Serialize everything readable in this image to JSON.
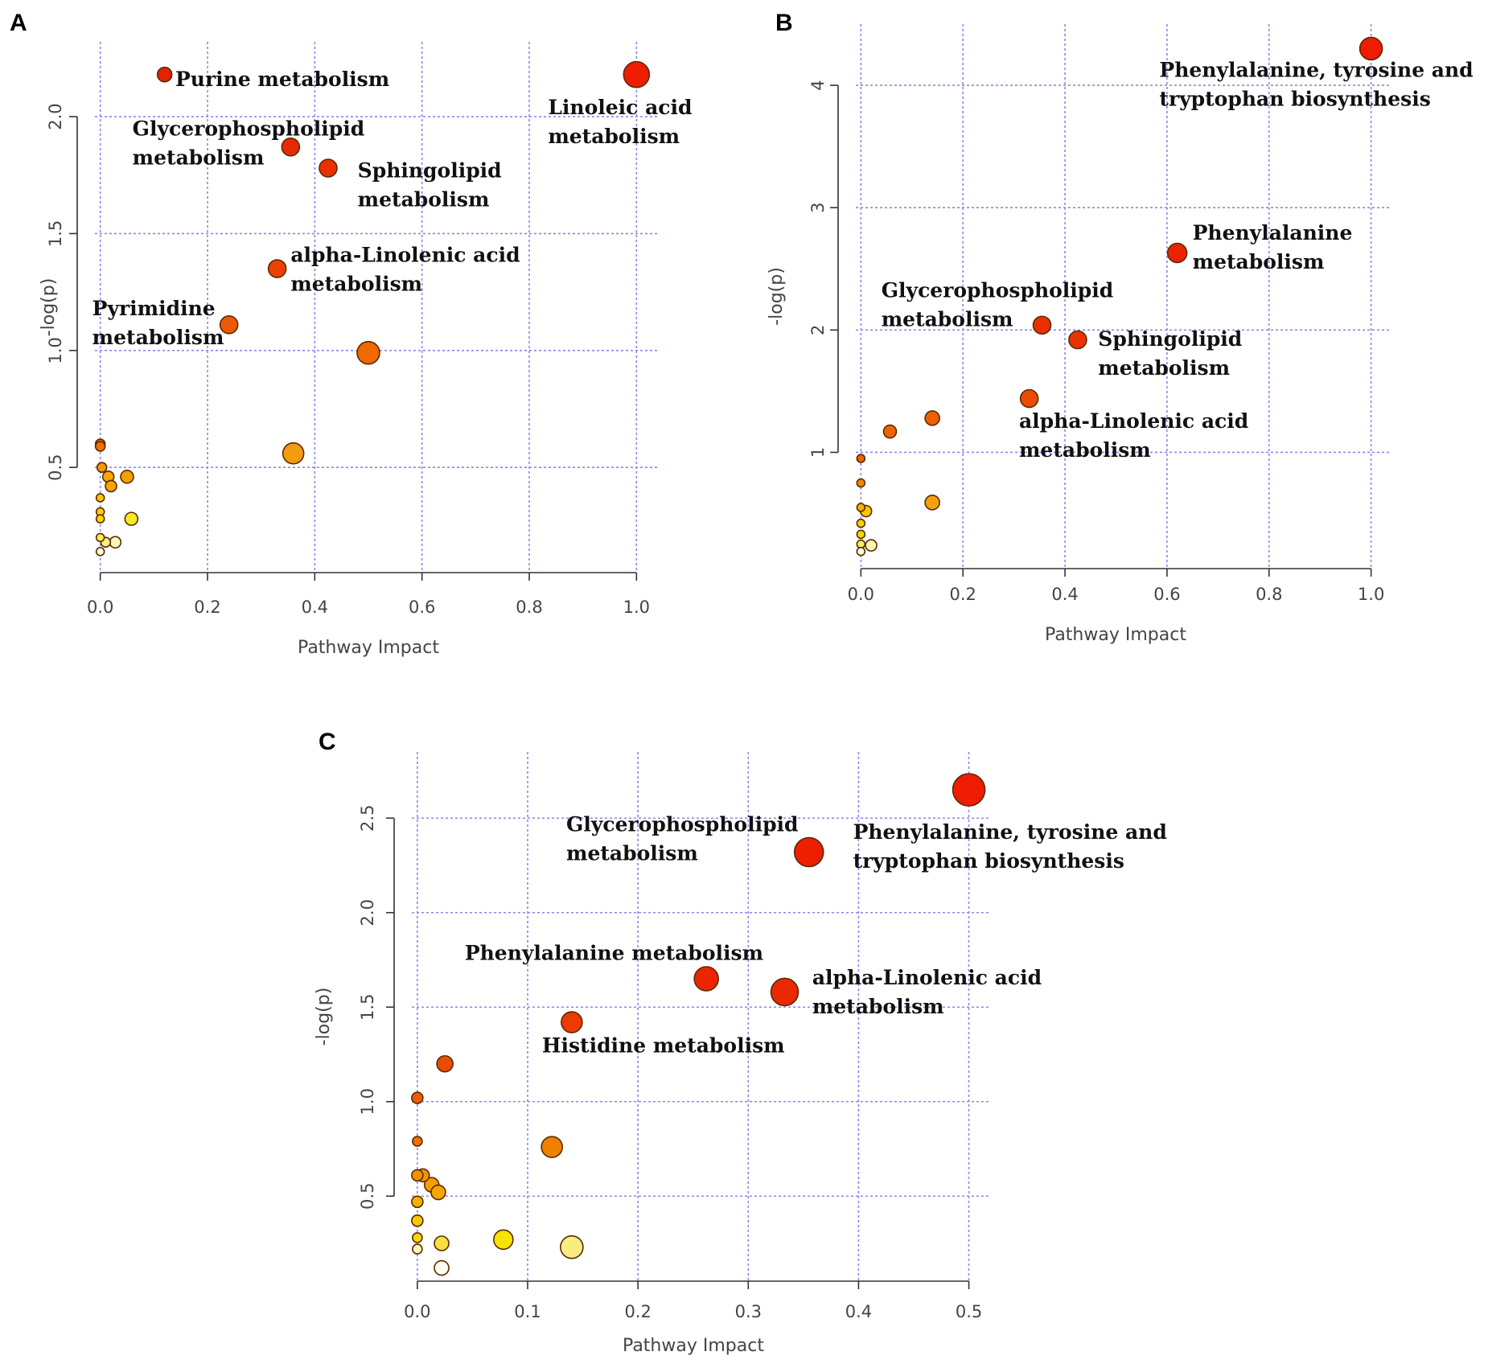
{
  "chart_data": [
    {
      "panel": "A",
      "type": "scatter",
      "xlabel": "Pathway Impact",
      "ylabel": "-log(p)",
      "xlim": [
        -0.01,
        1.04
      ],
      "ylim": [
        0.05,
        2.32
      ],
      "xticks": [
        0.0,
        0.2,
        0.4,
        0.6,
        0.8,
        1.0
      ],
      "xtick_labels": [
        "0.0",
        "0.2",
        "0.4",
        "0.6",
        "0.8",
        "1.0"
      ],
      "yticks": [
        0.5,
        1.0,
        1.5,
        2.0
      ],
      "ytick_labels": [
        "0.5",
        "1.0",
        "1.5",
        "2.0"
      ],
      "points": [
        {
          "x": 1.0,
          "y": 2.18,
          "r": 16,
          "color": "#ee1c00"
        },
        {
          "x": 0.12,
          "y": 2.18,
          "r": 9,
          "color": "#e42100"
        },
        {
          "x": 0.355,
          "y": 1.87,
          "r": 11,
          "color": "#e82a00"
        },
        {
          "x": 0.425,
          "y": 1.78,
          "r": 11,
          "color": "#ea3000"
        },
        {
          "x": 0.33,
          "y": 1.35,
          "r": 11,
          "color": "#ec4200"
        },
        {
          "x": 0.24,
          "y": 1.11,
          "r": 11,
          "color": "#ee5a00"
        },
        {
          "x": 0.5,
          "y": 0.99,
          "r": 14,
          "color": "#ef6800"
        },
        {
          "x": 0.36,
          "y": 0.56,
          "r": 13,
          "color": "#f49c10"
        },
        {
          "x": 0.0,
          "y": 0.6,
          "r": 6,
          "color": "#ec6000"
        },
        {
          "x": 0.0,
          "y": 0.59,
          "r": 6,
          "color": "#ee7000"
        },
        {
          "x": 0.003,
          "y": 0.5,
          "r": 6,
          "color": "#f39a00"
        },
        {
          "x": 0.015,
          "y": 0.46,
          "r": 7,
          "color": "#f5a800"
        },
        {
          "x": 0.02,
          "y": 0.42,
          "r": 7,
          "color": "#f6a500"
        },
        {
          "x": 0.05,
          "y": 0.46,
          "r": 8,
          "color": "#f5a000"
        },
        {
          "x": 0.0,
          "y": 0.37,
          "r": 5,
          "color": "#f8c800"
        },
        {
          "x": 0.0,
          "y": 0.31,
          "r": 5,
          "color": "#f8d000"
        },
        {
          "x": 0.0,
          "y": 0.28,
          "r": 5,
          "color": "#f9d800"
        },
        {
          "x": 0.058,
          "y": 0.28,
          "r": 8,
          "color": "#f8e820"
        },
        {
          "x": 0.0,
          "y": 0.2,
          "r": 5,
          "color": "#faf050"
        },
        {
          "x": 0.01,
          "y": 0.18,
          "r": 6,
          "color": "#fbf080"
        },
        {
          "x": 0.028,
          "y": 0.18,
          "r": 7,
          "color": "#fdf8c0"
        },
        {
          "x": 0.0,
          "y": 0.14,
          "r": 5,
          "color": "#fefee0"
        }
      ],
      "annotations": [
        {
          "lines": [
            "Purine metabolism"
          ],
          "x": 0.14,
          "y": 2.13
        },
        {
          "lines": [
            "Linoleic acid",
            "metabolism"
          ],
          "x": 0.835,
          "y": 2.01
        },
        {
          "lines": [
            "Glycerophospholipid",
            "metabolism"
          ],
          "x": 0.06,
          "y": 1.92
        },
        {
          "lines": [
            "Sphingolipid",
            "metabolism"
          ],
          "x": 0.48,
          "y": 1.74
        },
        {
          "lines": [
            "alpha-Linolenic acid",
            "metabolism"
          ],
          "x": 0.355,
          "y": 1.38
        },
        {
          "lines": [
            "Pyrimidine",
            "metabolism"
          ],
          "x": -0.015,
          "y": 1.15
        }
      ]
    },
    {
      "panel": "B",
      "type": "scatter",
      "xlabel": "Pathway Impact",
      "ylabel": "-log(p)",
      "xlim": [
        -0.01,
        1.04
      ],
      "ylim": [
        0.05,
        4.5
      ],
      "xticks": [
        0.0,
        0.2,
        0.4,
        0.6,
        0.8,
        1.0
      ],
      "xtick_labels": [
        "0.0",
        "0.2",
        "0.4",
        "0.6",
        "0.8",
        "1.0"
      ],
      "yticks": [
        1,
        2,
        3,
        4
      ],
      "ytick_labels": [
        "1",
        "2",
        "3",
        "4"
      ],
      "points": [
        {
          "x": 1.0,
          "y": 4.3,
          "r": 14,
          "color": "#ee1c00"
        },
        {
          "x": 0.62,
          "y": 2.63,
          "r": 12,
          "color": "#ea2400"
        },
        {
          "x": 0.355,
          "y": 2.04,
          "r": 11,
          "color": "#ea3000"
        },
        {
          "x": 0.425,
          "y": 1.92,
          "r": 11,
          "color": "#ea3400"
        },
        {
          "x": 0.33,
          "y": 1.44,
          "r": 11,
          "color": "#ec4c00"
        },
        {
          "x": 0.14,
          "y": 1.28,
          "r": 9,
          "color": "#ee6000"
        },
        {
          "x": 0.057,
          "y": 1.17,
          "r": 8,
          "color": "#ee6400"
        },
        {
          "x": 0.0,
          "y": 0.95,
          "r": 5,
          "color": "#ee6000"
        },
        {
          "x": 0.0,
          "y": 0.75,
          "r": 5,
          "color": "#f08800"
        },
        {
          "x": 0.14,
          "y": 0.59,
          "r": 9,
          "color": "#f4a010"
        },
        {
          "x": 0.0,
          "y": 0.55,
          "r": 5,
          "color": "#f6b000"
        },
        {
          "x": 0.01,
          "y": 0.52,
          "r": 7,
          "color": "#f7c800"
        },
        {
          "x": 0.0,
          "y": 0.42,
          "r": 5,
          "color": "#f8d000"
        },
        {
          "x": 0.0,
          "y": 0.33,
          "r": 5,
          "color": "#f9d800"
        },
        {
          "x": 0.0,
          "y": 0.25,
          "r": 5,
          "color": "#faf060"
        },
        {
          "x": 0.02,
          "y": 0.24,
          "r": 7,
          "color": "#fcf8b0"
        },
        {
          "x": 0.0,
          "y": 0.19,
          "r": 5,
          "color": "#fefee0"
        }
      ],
      "annotations": [
        {
          "lines": [
            "Phenylalanine, tyrosine and",
            "tryptophan biosynthesis"
          ],
          "x": 0.585,
          "y": 4.07
        },
        {
          "lines": [
            "Phenylalanine",
            "metabolism"
          ],
          "x": 0.65,
          "y": 2.74
        },
        {
          "lines": [
            "Glycerophospholipid",
            "metabolism"
          ],
          "x": 0.04,
          "y": 2.27
        },
        {
          "lines": [
            "Sphingolipid",
            "metabolism"
          ],
          "x": 0.465,
          "y": 1.87
        },
        {
          "lines": [
            "alpha-Linolenic acid",
            "metabolism"
          ],
          "x": 0.31,
          "y": 1.2
        }
      ]
    },
    {
      "panel": "C",
      "type": "scatter",
      "xlabel": "Pathway Impact",
      "ylabel": "-log(p)",
      "xlim": [
        -0.005,
        0.52
      ],
      "ylim": [
        0.05,
        2.85
      ],
      "xticks": [
        0.0,
        0.1,
        0.2,
        0.3,
        0.4,
        0.5
      ],
      "xtick_labels": [
        "0.0",
        "0.1",
        "0.2",
        "0.3",
        "0.4",
        "0.5"
      ],
      "yticks": [
        0.5,
        1.0,
        1.5,
        2.0,
        2.5
      ],
      "ytick_labels": [
        "0.5",
        "1.0",
        "1.5",
        "2.0",
        "2.5"
      ],
      "points": [
        {
          "x": 0.5,
          "y": 2.65,
          "r": 20,
          "color": "#ee1c00"
        },
        {
          "x": 0.355,
          "y": 2.32,
          "r": 18,
          "color": "#ee1e00"
        },
        {
          "x": 0.262,
          "y": 1.65,
          "r": 15,
          "color": "#ec2400"
        },
        {
          "x": 0.333,
          "y": 1.58,
          "r": 17,
          "color": "#ec2800"
        },
        {
          "x": 0.14,
          "y": 1.42,
          "r": 13,
          "color": "#ec3a00"
        },
        {
          "x": 0.025,
          "y": 1.2,
          "r": 10,
          "color": "#ea4c00"
        },
        {
          "x": 0.0,
          "y": 1.02,
          "r": 7,
          "color": "#ec5c00"
        },
        {
          "x": 0.0,
          "y": 0.79,
          "r": 6,
          "color": "#ee7000"
        },
        {
          "x": 0.122,
          "y": 0.76,
          "r": 13,
          "color": "#f08000"
        },
        {
          "x": 0.0,
          "y": 0.61,
          "r": 7,
          "color": "#f29200"
        },
        {
          "x": 0.005,
          "y": 0.61,
          "r": 8,
          "color": "#f29600"
        },
        {
          "x": 0.013,
          "y": 0.56,
          "r": 9,
          "color": "#f49f00"
        },
        {
          "x": 0.019,
          "y": 0.52,
          "r": 9,
          "color": "#f5a500"
        },
        {
          "x": 0.0,
          "y": 0.47,
          "r": 7,
          "color": "#f6b000"
        },
        {
          "x": 0.0,
          "y": 0.37,
          "r": 7,
          "color": "#f8c800"
        },
        {
          "x": 0.0,
          "y": 0.28,
          "r": 6,
          "color": "#f9d800"
        },
        {
          "x": 0.022,
          "y": 0.25,
          "r": 9,
          "color": "#f8e040"
        },
        {
          "x": 0.078,
          "y": 0.27,
          "r": 12,
          "color": "#f7e200"
        },
        {
          "x": 0.14,
          "y": 0.23,
          "r": 14,
          "color": "#f9ec80"
        },
        {
          "x": 0.0,
          "y": 0.22,
          "r": 6,
          "color": "#fcf8c0"
        },
        {
          "x": 0.022,
          "y": 0.12,
          "r": 9,
          "color": "#fefef4"
        }
      ],
      "annotations": [
        {
          "lines": [
            "Glycerophospholipid",
            "metabolism"
          ],
          "x": 0.135,
          "y": 2.43
        },
        {
          "lines": [
            "Phenylalanine, tyrosine and",
            "tryptophan biosynthesis"
          ],
          "x": 0.395,
          "y": 2.39
        },
        {
          "lines": [
            "Phenylalanine metabolism"
          ],
          "x": 0.043,
          "y": 1.75
        },
        {
          "lines": [
            "alpha-Linolenic acid",
            "metabolism"
          ],
          "x": 0.358,
          "y": 1.62
        },
        {
          "lines": [
            "Histidine metabolism"
          ],
          "x": 0.113,
          "y": 1.26
        }
      ]
    }
  ]
}
